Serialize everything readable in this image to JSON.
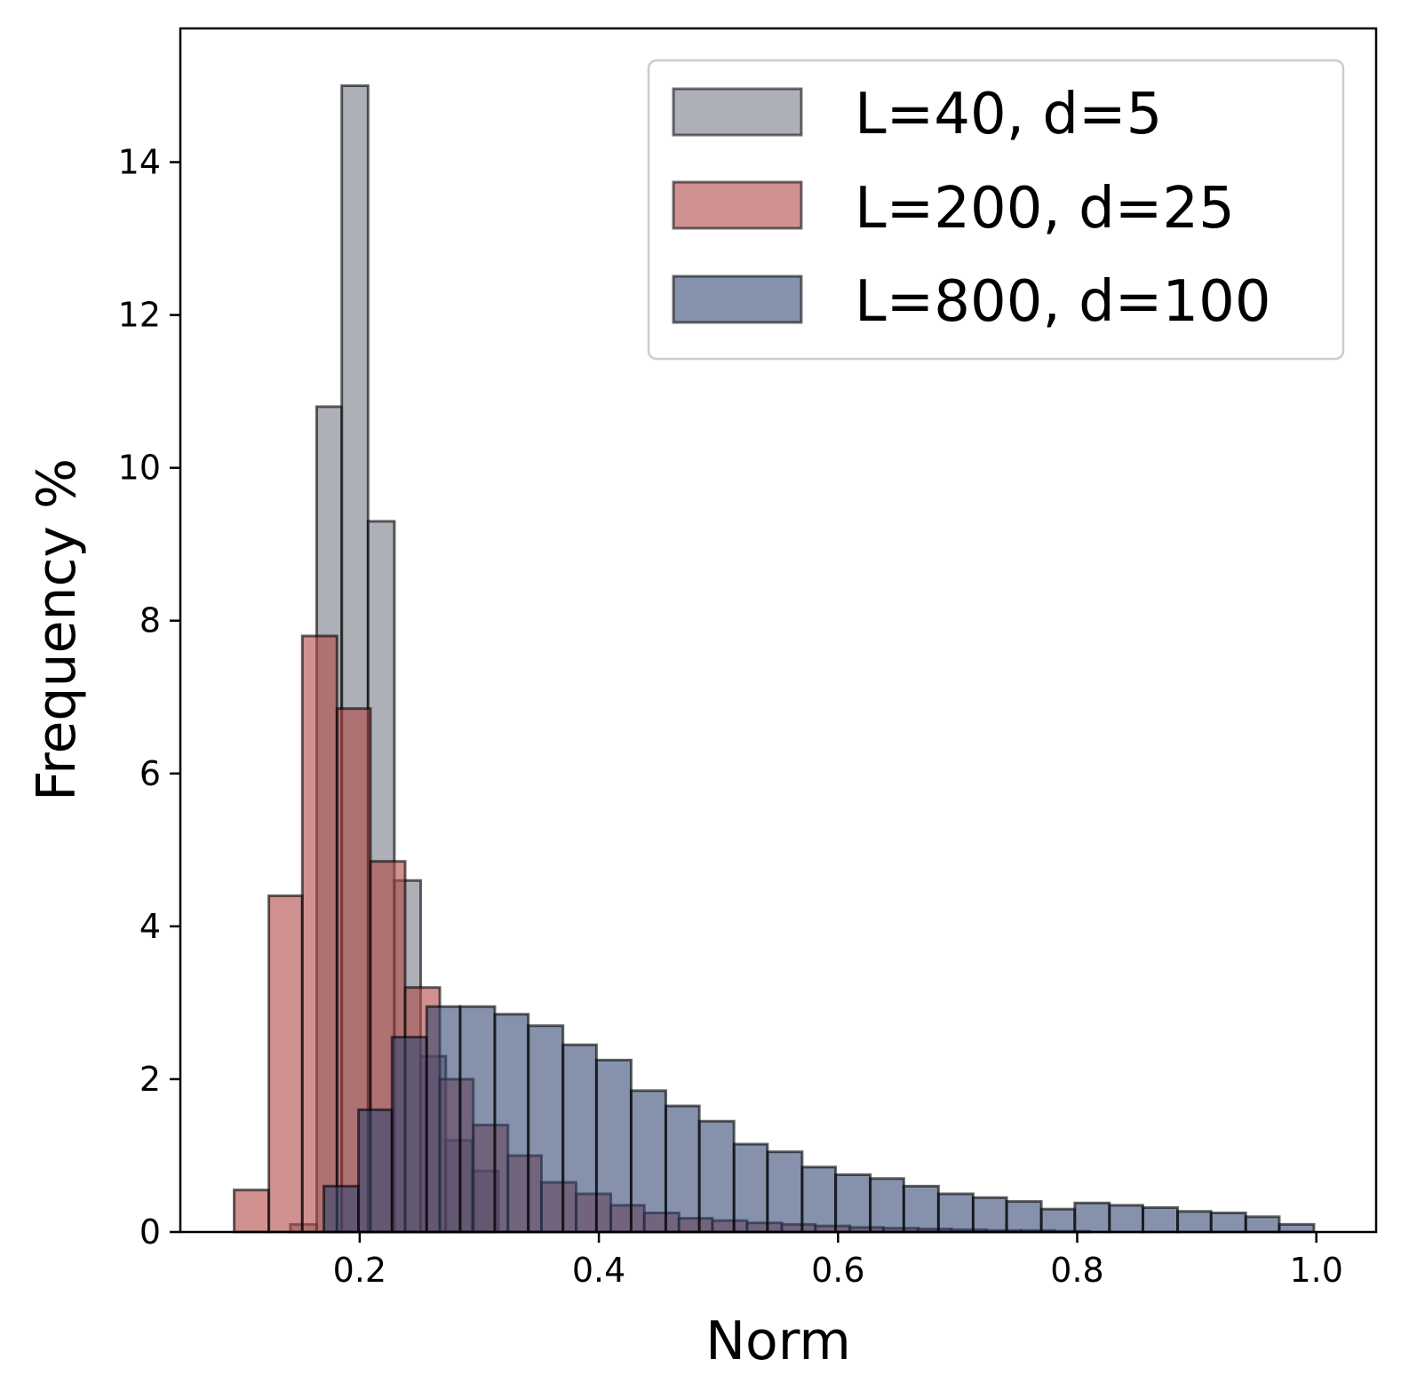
{
  "chart_data": {
    "type": "bar",
    "subtype": "overlapping-histogram",
    "xlabel": "Norm",
    "ylabel": "Frequency %",
    "xlim": [
      0.05,
      1.05
    ],
    "ylim": [
      0,
      15.75
    ],
    "xticks": [
      "0.2",
      "0.4",
      "0.6",
      "0.8",
      "1.0"
    ],
    "yticks": [
      "0",
      "2",
      "4",
      "6",
      "8",
      "10",
      "12",
      "14"
    ],
    "grid": false,
    "legend_position": "top-right",
    "series": [
      {
        "name": "L=40, d=5",
        "color": "#8a9099",
        "bin_edges": [
          0.142,
          0.164,
          0.185,
          0.207,
          0.229,
          0.251,
          0.272,
          0.294,
          0.316
        ],
        "values": [
          0.1,
          10.8,
          15.0,
          9.3,
          4.6,
          2.3,
          1.2,
          0.8
        ]
      },
      {
        "name": "L=200, d=25",
        "color": "#b04846",
        "bin_edges": [
          0.095,
          0.124,
          0.152,
          0.181,
          0.209,
          0.238,
          0.267,
          0.295,
          0.324,
          0.352,
          0.381,
          0.41,
          0.438,
          0.467,
          0.495,
          0.524,
          0.553,
          0.581,
          0.61,
          0.638,
          0.667,
          0.695,
          0.724,
          0.753,
          0.781,
          0.81
        ],
        "values": [
          0.55,
          4.4,
          7.8,
          6.85,
          4.85,
          3.2,
          2.0,
          1.4,
          1.0,
          0.65,
          0.5,
          0.35,
          0.25,
          0.18,
          0.15,
          0.12,
          0.1,
          0.08,
          0.06,
          0.05,
          0.04,
          0.03,
          0.02,
          0.02,
          0.01
        ]
      },
      {
        "name": "L=800, d=100",
        "color": "#2e4470",
        "bin_edges": [
          0.17,
          0.199,
          0.227,
          0.256,
          0.284,
          0.313,
          0.341,
          0.37,
          0.398,
          0.427,
          0.456,
          0.484,
          0.513,
          0.541,
          0.57,
          0.598,
          0.627,
          0.655,
          0.684,
          0.713,
          0.741,
          0.77,
          0.798,
          0.827,
          0.855,
          0.884,
          0.912,
          0.941,
          0.969,
          0.998
        ],
        "values": [
          0.6,
          1.6,
          2.55,
          2.95,
          2.95,
          2.85,
          2.7,
          2.45,
          2.25,
          1.85,
          1.65,
          1.45,
          1.15,
          1.05,
          0.85,
          0.75,
          0.7,
          0.6,
          0.5,
          0.45,
          0.4,
          0.3,
          0.38,
          0.35,
          0.32,
          0.27,
          0.25,
          0.2,
          0.1
        ]
      }
    ]
  }
}
